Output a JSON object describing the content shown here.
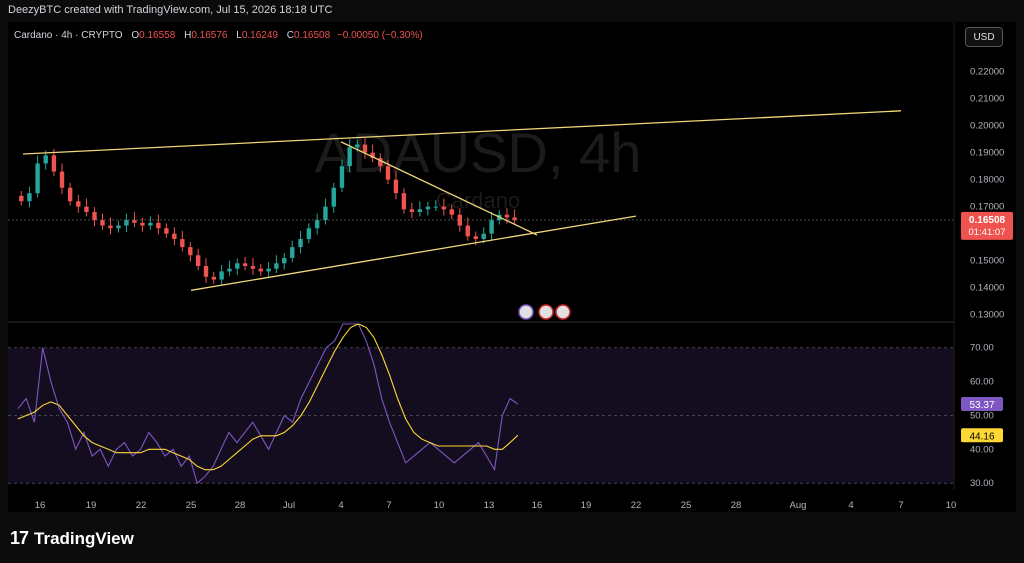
{
  "header": {
    "attribution": "DeezyBTC created with TradingView.com, Jul 15, 2026 18:18 UTC"
  },
  "legend": {
    "symbol": "Cardano · 4h · CRYPTO",
    "o_label": "O",
    "o": "0.16558",
    "h_label": "H",
    "h": "0.16576",
    "l_label": "L",
    "l": "0.16249",
    "c_label": "C",
    "c": "0.16508",
    "change": "−0.00050 (−0.30%)"
  },
  "currency_button": "USD",
  "watermark": {
    "symbol": "ADAUSD, 4h",
    "name": "Cardano"
  },
  "price_tag": {
    "value": "0.16508",
    "countdown": "01:41:07"
  },
  "rsi_tags": {
    "rsi": "53.37",
    "ma": "44.16"
  },
  "brand": {
    "name": "TradingView",
    "mark": "17"
  },
  "colors": {
    "up": "#26a69a",
    "down": "#ef5350",
    "trendline": "#f0d77a",
    "rsi": "#7e57c2",
    "rsi_ma": "#fdd835"
  },
  "chart_data": [
    {
      "type": "candlestick",
      "title": "",
      "y_ticks": [
        "0.22000",
        "0.21000",
        "0.20000",
        "0.19000",
        "0.18000",
        "0.17000",
        "0.15000",
        "0.14000",
        "0.13000"
      ],
      "ylim": [
        0.128,
        0.231
      ],
      "x_ticks": [
        "16",
        "19",
        "22",
        "25",
        "28",
        "Jul",
        "4",
        "7",
        "10",
        "13",
        "16",
        "19",
        "22",
        "25",
        "28",
        "Aug",
        "4",
        "7",
        "10"
      ],
      "series_close": [
        0.172,
        0.175,
        0.186,
        0.189,
        0.183,
        0.177,
        0.172,
        0.17,
        0.168,
        0.165,
        0.163,
        0.162,
        0.163,
        0.165,
        0.164,
        0.163,
        0.164,
        0.162,
        0.16,
        0.158,
        0.155,
        0.152,
        0.148,
        0.144,
        0.143,
        0.146,
        0.147,
        0.149,
        0.148,
        0.147,
        0.146,
        0.147,
        0.149,
        0.151,
        0.155,
        0.158,
        0.162,
        0.165,
        0.17,
        0.177,
        0.185,
        0.192,
        0.193,
        0.19,
        0.188,
        0.185,
        0.18,
        0.175,
        0.169,
        0.168,
        0.169,
        0.17,
        0.17,
        0.169,
        0.167,
        0.163,
        0.159,
        0.158,
        0.16,
        0.165,
        0.167,
        0.166,
        0.165
      ],
      "trendlines": [
        {
          "name": "upper",
          "from": [
            "15 Jun",
            0.1895
          ],
          "to": [
            "7 Aug",
            0.2055
          ]
        },
        {
          "name": "descending",
          "from": [
            "4 Jul",
            0.194
          ],
          "to": [
            "16 Jul",
            0.1595
          ]
        },
        {
          "name": "rising",
          "from": [
            "25 Jun",
            0.139
          ],
          "to": [
            "22 Jul",
            0.1665
          ]
        }
      ]
    },
    {
      "type": "line",
      "title": "",
      "y_ticks": [
        "70.00",
        "60.00",
        "50.00",
        "40.00",
        "30.00"
      ],
      "ylim": [
        28,
        77
      ],
      "bands": [
        30,
        50,
        70
      ],
      "series": [
        {
          "values": [
            52,
            55,
            48,
            70,
            60,
            52,
            48,
            40,
            45,
            38,
            40,
            35,
            40,
            42,
            38,
            40,
            45,
            42,
            38,
            40,
            35,
            38,
            30,
            32,
            35,
            40,
            45,
            42,
            45,
            48,
            44,
            40,
            45,
            50,
            48,
            55,
            60,
            65,
            70,
            72,
            78,
            80,
            78,
            72,
            65,
            55,
            48,
            42,
            36,
            38,
            40,
            42,
            40,
            38,
            36,
            38,
            40,
            42,
            38,
            34,
            50,
            55,
            53.37
          ]
        },
        {
          "values": [
            49,
            50,
            51,
            53,
            54,
            53,
            50,
            47,
            44,
            42,
            41,
            40,
            39,
            39,
            39,
            39,
            40,
            40,
            40,
            39,
            38,
            37,
            35,
            34,
            34,
            35,
            37,
            39,
            41,
            43,
            44,
            44,
            44,
            45,
            47,
            50,
            54,
            59,
            64,
            69,
            73,
            76,
            77,
            76,
            73,
            68,
            62,
            55,
            49,
            45,
            43,
            42,
            41,
            41,
            41,
            41,
            41,
            41,
            41,
            40,
            40,
            42,
            44.16
          ]
        }
      ]
    }
  ]
}
